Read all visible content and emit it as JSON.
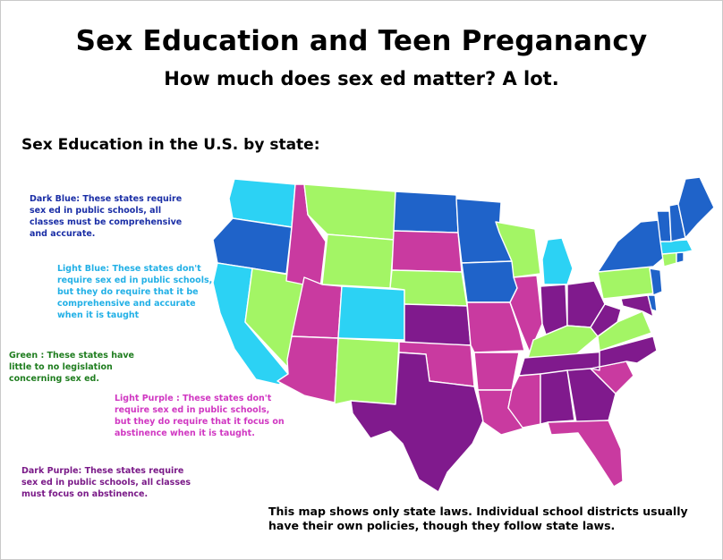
{
  "title": "Sex Education and Teen Preganancy",
  "subtitle": "How much does sex ed matter? A lot.",
  "section_heading": "Sex Education in the U.S. by state:",
  "colors": {
    "dark_blue": "#1f63c9",
    "light_blue": "#2cd2f4",
    "green": "#a3f565",
    "light_purple": "#c93aa0",
    "dark_purple": "#801a8d"
  },
  "legend": {
    "dark_blue": "Dark Blue: These states require\nsex ed in public schools, all\nclasses must be comprehensive\nand accurate.",
    "light_blue": "Light Blue: These states don't\nrequire sex ed in public  schools,\n but they do require that it be\ncomprehensive and accurate\nwhen it is taught",
    "green": "Green : These states have\nlittle to no legislation\nconcerning sex ed.",
    "light_purple": "Light Purple : These states don't\nrequire sex ed in public schools,\nbut they do require that it focus on\nabstinence when it is taught.",
    "dark_purple": "Dark Purple: These states require\nsex ed in public schools, all classes\nmust focus on abstinence."
  },
  "note": "This map shows only state laws. Individual school districts usually\n   have their own policies, though they follow state laws.",
  "states": [
    {
      "name": "Washington",
      "category": "light_blue"
    },
    {
      "name": "Oregon",
      "category": "dark_blue"
    },
    {
      "name": "California",
      "category": "light_blue"
    },
    {
      "name": "Nevada",
      "category": "green"
    },
    {
      "name": "Idaho",
      "category": "light_purple"
    },
    {
      "name": "Montana",
      "category": "green"
    },
    {
      "name": "Wyoming",
      "category": "green"
    },
    {
      "name": "Utah",
      "category": "light_purple"
    },
    {
      "name": "Arizona",
      "category": "light_purple"
    },
    {
      "name": "Colorado",
      "category": "light_blue"
    },
    {
      "name": "New Mexico",
      "category": "green"
    },
    {
      "name": "North Dakota",
      "category": "dark_blue"
    },
    {
      "name": "South Dakota",
      "category": "light_purple"
    },
    {
      "name": "Nebraska",
      "category": "green"
    },
    {
      "name": "Kansas",
      "category": "dark_purple"
    },
    {
      "name": "Oklahoma",
      "category": "light_purple"
    },
    {
      "name": "Texas",
      "category": "dark_purple"
    },
    {
      "name": "Minnesota",
      "category": "dark_blue"
    },
    {
      "name": "Iowa",
      "category": "dark_blue"
    },
    {
      "name": "Missouri",
      "category": "light_purple"
    },
    {
      "name": "Arkansas",
      "category": "light_purple"
    },
    {
      "name": "Louisiana",
      "category": "light_purple"
    },
    {
      "name": "Wisconsin",
      "category": "green"
    },
    {
      "name": "Illinois",
      "category": "light_purple"
    },
    {
      "name": "Michigan",
      "category": "light_blue"
    },
    {
      "name": "Indiana",
      "category": "dark_purple"
    },
    {
      "name": "Ohio",
      "category": "dark_purple"
    },
    {
      "name": "Kentucky",
      "category": "green"
    },
    {
      "name": "Tennessee",
      "category": "dark_purple"
    },
    {
      "name": "Mississippi",
      "category": "light_purple"
    },
    {
      "name": "Alabama",
      "category": "dark_purple"
    },
    {
      "name": "Georgia",
      "category": "dark_purple"
    },
    {
      "name": "Florida",
      "category": "light_purple"
    },
    {
      "name": "South Carolina",
      "category": "light_purple"
    },
    {
      "name": "North Carolina",
      "category": "dark_purple"
    },
    {
      "name": "Virginia",
      "category": "green"
    },
    {
      "name": "West Virginia",
      "category": "dark_purple"
    },
    {
      "name": "Pennsylvania",
      "category": "green"
    },
    {
      "name": "New York",
      "category": "dark_blue"
    },
    {
      "name": "Maryland",
      "category": "dark_purple"
    },
    {
      "name": "Delaware",
      "category": "dark_blue"
    },
    {
      "name": "New Jersey",
      "category": "dark_blue"
    },
    {
      "name": "Connecticut",
      "category": "green"
    },
    {
      "name": "Rhode Island",
      "category": "dark_blue"
    },
    {
      "name": "Massachusetts",
      "category": "light_blue"
    },
    {
      "name": "Vermont",
      "category": "dark_blue"
    },
    {
      "name": "New Hampshire",
      "category": "dark_blue"
    },
    {
      "name": "Maine",
      "category": "dark_blue"
    }
  ]
}
